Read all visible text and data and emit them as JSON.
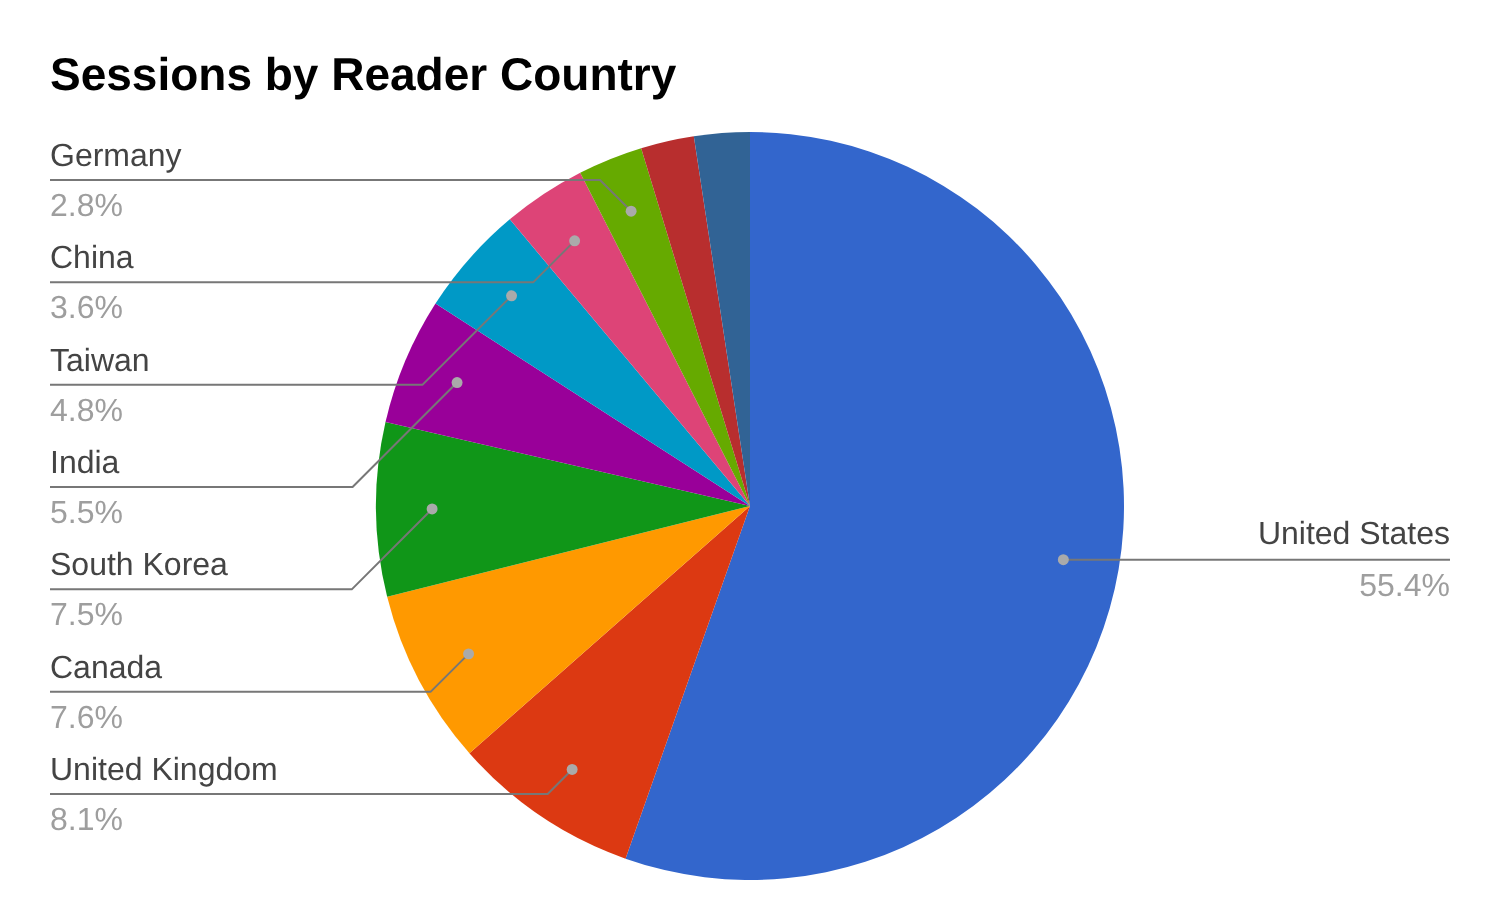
{
  "chart_data": {
    "type": "pie",
    "title": "Sessions by Reader Country",
    "categories": [
      "United States",
      "United Kingdom",
      "Canada",
      "South Korea",
      "India",
      "Taiwan",
      "China",
      "Germany",
      null,
      null
    ],
    "values": [
      55.4,
      8.1,
      7.6,
      7.5,
      5.5,
      4.8,
      3.6,
      2.8,
      2.3,
      2.4
    ],
    "colors": [
      "#3366cc",
      "#dc3912",
      "#ff9900",
      "#109618",
      "#990099",
      "#0099c6",
      "#dd4477",
      "#66aa00",
      "#b82e2e",
      "#316395"
    ],
    "value_labels": [
      "55.4%",
      "8.1%",
      "7.6%",
      "7.5%",
      "5.5%",
      "4.8%",
      "3.6%",
      "2.8%",
      null,
      null
    ]
  }
}
